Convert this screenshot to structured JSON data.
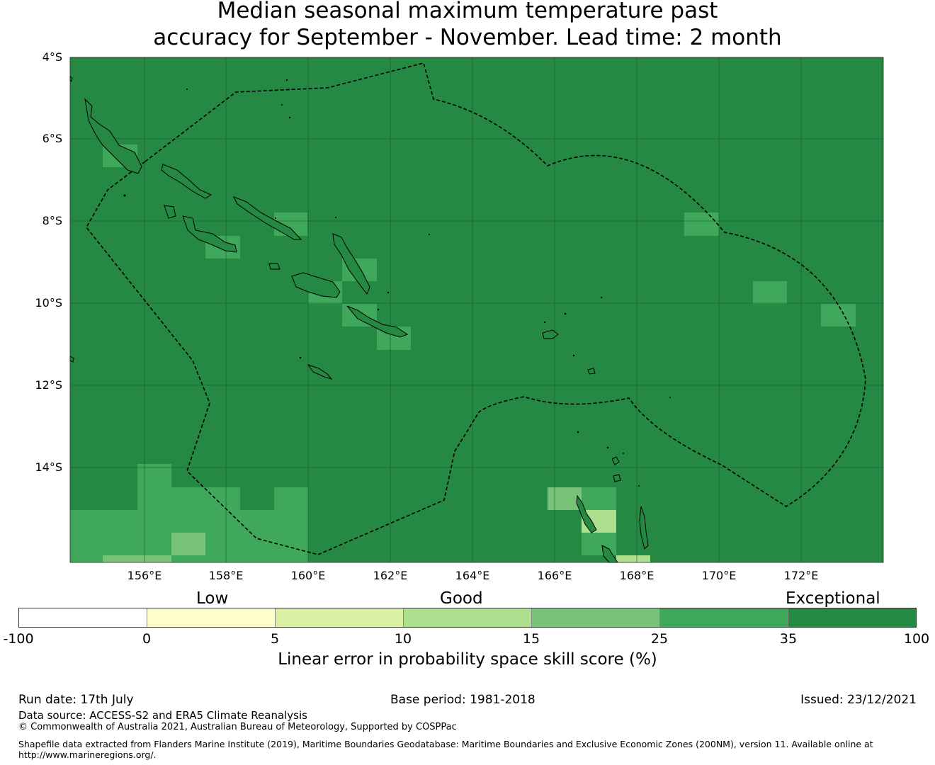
{
  "title": {
    "line1": "Median seasonal maximum temperature past",
    "line2": "accuracy for September - November. Lead time: 2 month"
  },
  "map": {
    "lat_labels": [
      "4°S",
      "6°S",
      "8°S",
      "10°S",
      "12°S",
      "14°S"
    ],
    "lon_labels": [
      "156°E",
      "158°E",
      "160°E",
      "162°E",
      "164°E",
      "166°E",
      "168°E",
      "170°E",
      "172°E"
    ],
    "colors": {
      "exceptional": "#258843",
      "good_high": "#3fa85a",
      "good_mid": "#78c379",
      "good_low": "#addf8e",
      "low_high": "#d9f0a3",
      "low": "#ffffcc",
      "none": "#ffffff"
    }
  },
  "colorbar": {
    "categories": [
      "Low",
      "Good",
      "Exceptional"
    ],
    "ticks": [
      "-100",
      "0",
      "5",
      "10",
      "15",
      "25",
      "35",
      "100"
    ],
    "colors": [
      "#ffffff",
      "#ffffcc",
      "#d9f0a3",
      "#addf8e",
      "#78c379",
      "#3fa85a",
      "#258843"
    ],
    "title": "Linear error in probability space skill score (%)"
  },
  "footer": {
    "run_date": "Run date: 17th July",
    "base_period": "Base period: 1981-2018",
    "issued": "Issued: 23/12/2021",
    "data_source": "Data source: ACCESS-S2 and ERA5 Climate Reanalysis",
    "copyright": "© Commonwealth of Australia 2021, Australian Bureau of Meteorology, Supported by COSPPac",
    "shapefile_line1": "Shapefile data extracted from Flanders Marine Institute (2019), Maritime Boundaries Geodatabase: Maritime Boundaries and Exclusive Economic Zones (200NM), version 11. Available online at",
    "shapefile_line2": "http://www.marineregions.org/."
  }
}
